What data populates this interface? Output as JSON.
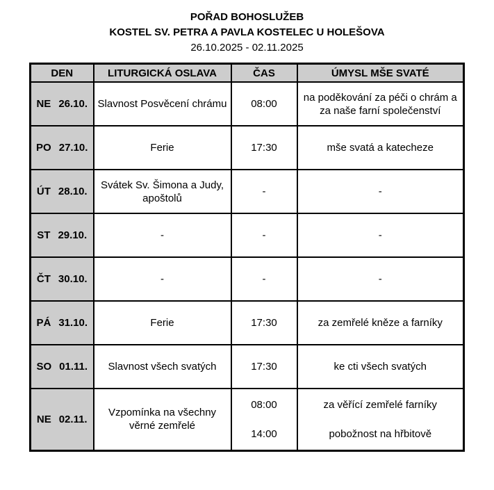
{
  "document": {
    "title": "POŘAD BOHOSLUŽEB",
    "subtitle": "KOSTEL SV. PETRA A PAVLA KOSTELEC U HOLEŠOVA",
    "date_range": "26.10.2025 - 02.11.2025"
  },
  "table": {
    "columns": [
      "DEN",
      "LITURGICKÁ OSLAVA",
      "ČAS",
      "ÚMYSL MŠE SVATÉ"
    ],
    "rows": [
      {
        "day": "NE",
        "date": "26.10.",
        "celebration": "Slavnost Posvěcení chrámu",
        "times": [
          "08:00"
        ],
        "intentions": [
          "na poděkování za péči o chrám a za naše farní společenství"
        ]
      },
      {
        "day": "PO",
        "date": "27.10.",
        "celebration": "Ferie",
        "times": [
          "17:30"
        ],
        "intentions": [
          "mše svatá a katecheze"
        ]
      },
      {
        "day": "ÚT",
        "date": "28.10.",
        "celebration": "Svátek Sv. Šimona a Judy, apoštolů",
        "times": [
          "-"
        ],
        "intentions": [
          "-"
        ]
      },
      {
        "day": "ST",
        "date": "29.10.",
        "celebration": "-",
        "times": [
          "-"
        ],
        "intentions": [
          "-"
        ]
      },
      {
        "day": "ČT",
        "date": "30.10.",
        "celebration": "-",
        "times": [
          "-"
        ],
        "intentions": [
          "-"
        ]
      },
      {
        "day": "PÁ",
        "date": "31.10.",
        "celebration": "Ferie",
        "times": [
          "17:30"
        ],
        "intentions": [
          "za zemřelé kněze a farníky"
        ]
      },
      {
        "day": "SO",
        "date": "01.11.",
        "celebration": "Slavnost všech svatých",
        "times": [
          "17:30"
        ],
        "intentions": [
          "ke cti všech svatých"
        ]
      },
      {
        "day": "NE",
        "date": "02.11.",
        "celebration": "Vzpomínka na všechny věrné zemřelé",
        "times": [
          "08:00",
          "14:00"
        ],
        "intentions": [
          "za věřící zemřelé farníky",
          "pobožnost na hřbitově"
        ]
      }
    ]
  },
  "colors": {
    "header_bg": "#cdcdcd",
    "border": "#000000",
    "page_bg": "#ffffff"
  }
}
